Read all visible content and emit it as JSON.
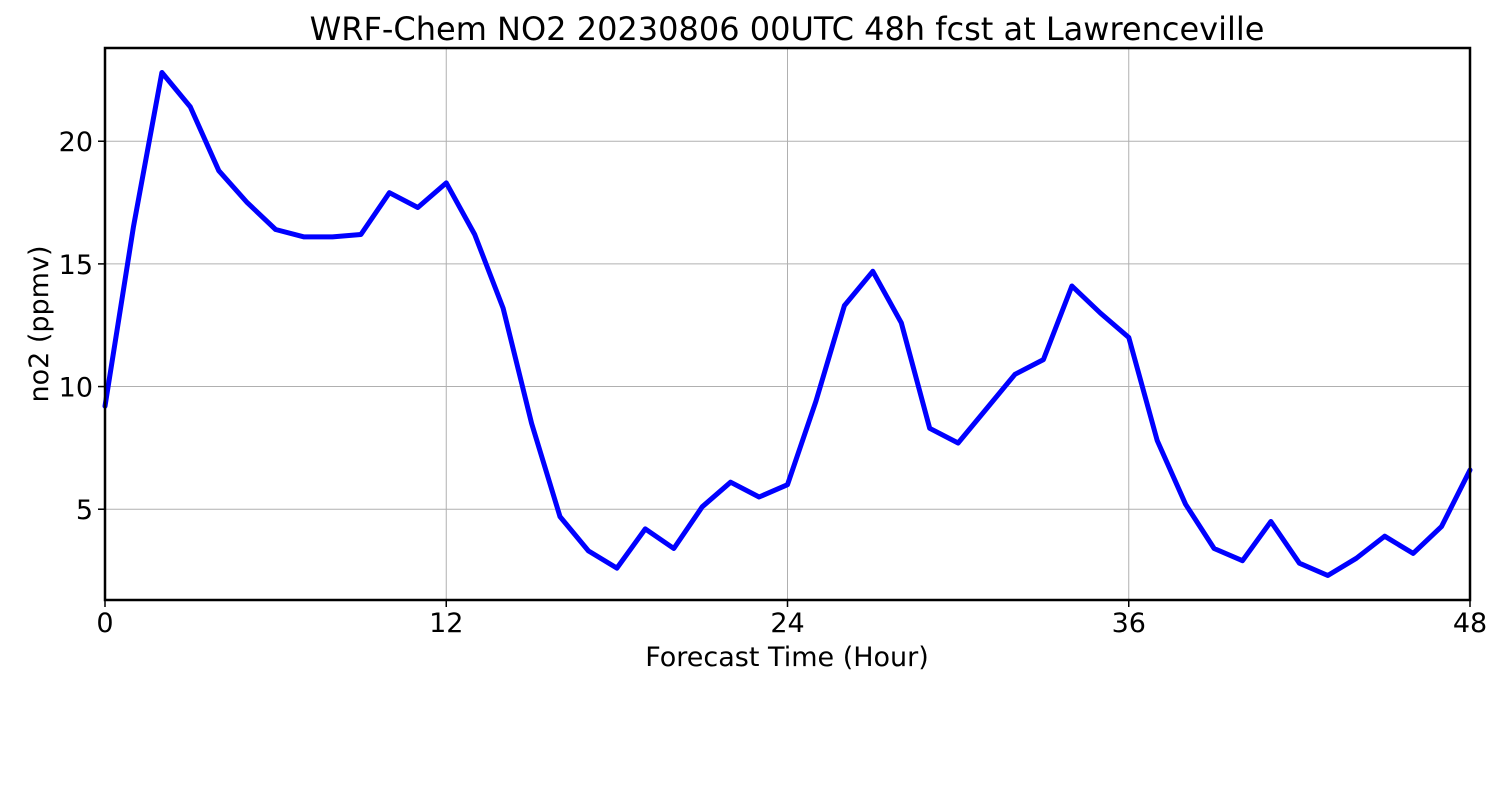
{
  "chart_data": {
    "type": "line",
    "title": "WRF-Chem NO2  20230806 00UTC 48h fcst at Lawrenceville",
    "xlabel": "Forecast Time (Hour)",
    "ylabel": "no2  (ppmv)",
    "xlim": [
      0,
      48
    ],
    "ylim": [
      1.3,
      23.8
    ],
    "xticks": [
      0,
      12,
      24,
      36,
      48
    ],
    "yticks": [
      5,
      10,
      15,
      20
    ],
    "grid": true,
    "legend": "none",
    "series": [
      {
        "color": "#0000ff",
        "x": [
          0,
          1,
          2,
          3,
          4,
          5,
          6,
          7,
          8,
          9,
          10,
          11,
          12,
          13,
          14,
          15,
          16,
          17,
          18,
          19,
          20,
          21,
          22,
          23,
          24,
          25,
          26,
          27,
          28,
          29,
          30,
          31,
          32,
          33,
          34,
          35,
          36,
          37,
          38,
          39,
          40,
          41,
          42,
          43,
          44,
          45,
          46,
          47,
          48
        ],
        "y": [
          9.2,
          16.5,
          22.8,
          21.4,
          18.8,
          17.5,
          16.4,
          16.1,
          16.1,
          16.2,
          17.9,
          17.3,
          18.3,
          16.2,
          13.2,
          8.5,
          4.7,
          3.3,
          2.6,
          4.2,
          3.4,
          5.1,
          6.1,
          5.5,
          6.0,
          9.4,
          13.3,
          14.7,
          12.6,
          8.3,
          7.7,
          9.1,
          10.5,
          11.1,
          14.1,
          13.0,
          12.0,
          7.8,
          5.2,
          3.4,
          2.9,
          4.5,
          2.8,
          2.3,
          3.0,
          3.9,
          3.2,
          4.3,
          6.6
        ]
      }
    ]
  }
}
